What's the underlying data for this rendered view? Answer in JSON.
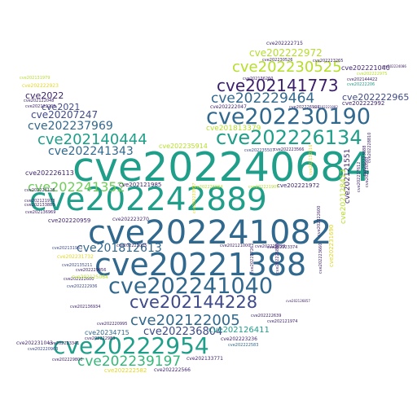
{
  "palette": {
    "purple": "#3b1f6b",
    "indigo": "#3e4a89",
    "blue": "#31688e",
    "teal": "#26828e",
    "green": "#1f9e89",
    "mint": "#35b779",
    "lime": "#6ece58",
    "yellow": "#b5de2b",
    "gold": "#e2d621"
  },
  "words": [
    {
      "text": "cve202240684",
      "color": "green"
    },
    {
      "text": "cve202242889",
      "color": "green"
    },
    {
      "text": "cve202241082",
      "color": "blue"
    },
    {
      "text": "cve20221388",
      "color": "blue"
    },
    {
      "text": "cve202241040",
      "color": "blue"
    },
    {
      "text": "cve20222954",
      "color": "green"
    },
    {
      "text": "cve202144228",
      "color": "indigo"
    },
    {
      "text": "cve202230190",
      "color": "blue"
    },
    {
      "text": "cve202226134",
      "color": "green"
    },
    {
      "text": "cve202141773",
      "color": "purple"
    },
    {
      "text": "cve202230525",
      "color": "yellow"
    },
    {
      "text": "cve202229464",
      "color": "blue"
    },
    {
      "text": "cve202140444",
      "color": "green"
    },
    {
      "text": "cve202241343",
      "color": "blue"
    },
    {
      "text": "cve202237969",
      "color": "blue"
    },
    {
      "text": "cve202241352",
      "color": "lime"
    },
    {
      "text": "cve202122005",
      "color": "blue"
    },
    {
      "text": "cve202239197",
      "color": "mint"
    },
    {
      "text": "cve201812613",
      "color": "blue"
    },
    {
      "text": "cve202236804",
      "color": "indigo"
    },
    {
      "text": "cve202222972",
      "color": "yellow"
    },
    {
      "text": "cve202222965",
      "color": "indigo"
    },
    {
      "text": "cve20207247",
      "color": "indigo"
    },
    {
      "text": "cve2021",
      "color": "indigo"
    },
    {
      "text": "cve2022",
      "color": "purple"
    },
    {
      "text": "cve202221040",
      "color": "purple"
    },
    {
      "text": "cve20234715",
      "color": "blue"
    },
    {
      "text": "cve202126411",
      "color": "green"
    },
    {
      "text": "cve202121551",
      "color": "purple"
    },
    {
      "text": "cve201813379",
      "color": "yellow"
    },
    {
      "text": "cve202235914",
      "color": "yellow"
    },
    {
      "text": "cve202226113",
      "color": "purple"
    },
    {
      "text": "cve202222992",
      "color": "purple"
    },
    {
      "text": "cve202221972",
      "color": "purple"
    },
    {
      "text": "cve202121985",
      "color": "purple"
    },
    {
      "text": "cve202223270",
      "color": "purple"
    },
    {
      "text": "cve202220959",
      "color": "purple"
    },
    {
      "text": "cve202222566",
      "color": "purple"
    },
    {
      "text": "cve202133771",
      "color": "purple"
    },
    {
      "text": "cve202222582",
      "color": "gold"
    },
    {
      "text": "cve202231732",
      "color": "gold"
    },
    {
      "text": "cve202231043",
      "color": "purple"
    },
    {
      "text": "cve202222715",
      "color": "purple"
    },
    {
      "text": "cve202222923",
      "color": "gold"
    },
    {
      "text": "cve202131979",
      "color": "yellow"
    },
    {
      "text": "cve202122048",
      "color": "purple"
    },
    {
      "text": "cve202222047",
      "color": "purple"
    },
    {
      "text": "cve202223236",
      "color": "purple"
    },
    {
      "text": "cve202222583",
      "color": "blue"
    },
    {
      "text": "cve202222639",
      "color": "purple"
    },
    {
      "text": "cve202220995",
      "color": "purple"
    },
    {
      "text": "cve202222936",
      "color": "indigo"
    },
    {
      "text": "cve202144422",
      "color": "purple"
    },
    {
      "text": "cve20222206",
      "color": "green"
    },
    {
      "text": "cve202222975",
      "color": "yellow"
    },
    {
      "text": "cve202136260",
      "color": "purple"
    },
    {
      "text": "cve202235507",
      "color": "indigo"
    },
    {
      "text": "cve202226084",
      "color": "yellow"
    },
    {
      "text": "cve202221907",
      "color": "yellow"
    },
    {
      "text": "cve202223566",
      "color": "purple"
    },
    {
      "text": "cve202222600",
      "color": "purple"
    },
    {
      "text": "cve202135211",
      "color": "indigo"
    },
    {
      "text": "cve202136934",
      "color": "purple"
    },
    {
      "text": "cve202229799",
      "color": "purple"
    },
    {
      "text": "cve202222005",
      "color": "purple"
    },
    {
      "text": "cve202125064",
      "color": "yellow"
    },
    {
      "text": "cve202223341",
      "color": "purple"
    },
    {
      "text": "cve202222983",
      "color": "purple"
    },
    {
      "text": "cve202131962",
      "color": "indigo"
    },
    {
      "text": "cve202229800",
      "color": "purple"
    },
    {
      "text": "cve202229456",
      "color": "purple"
    },
    {
      "text": "cve202220963",
      "color": "indigo"
    },
    {
      "text": "cve202121974",
      "color": "purple"
    },
    {
      "text": "cve202126857",
      "color": "purple"
    },
    {
      "text": "cve202223374",
      "color": "purple"
    },
    {
      "text": "cve202230526",
      "color": "purple"
    },
    {
      "text": "cve202223265",
      "color": "purple"
    },
    {
      "text": "cve202226923",
      "color": "purple"
    },
    {
      "text": "cve202221882",
      "color": "purple"
    },
    {
      "text": "cve202122205",
      "color": "purple"
    },
    {
      "text": "cve202226128",
      "color": "purple"
    },
    {
      "text": "cve202121973",
      "color": "purple"
    },
    {
      "text": "cve202133885",
      "color": "purple"
    },
    {
      "text": "cve202136969",
      "color": "purple"
    },
    {
      "text": "cve202121000",
      "color": "purple"
    },
    {
      "text": "cve202128413",
      "color": "yellow"
    },
    {
      "text": "cve202231690",
      "color": "gold"
    },
    {
      "text": "cve202217612",
      "color": "purple"
    },
    {
      "text": "cve202230560",
      "color": "purple"
    },
    {
      "text": "cve202223888",
      "color": "purple"
    },
    {
      "text": "cve202223660",
      "color": "purple"
    },
    {
      "text": "cve202222600",
      "color": "purple"
    },
    {
      "text": "cve202233977",
      "color": "gold"
    },
    {
      "text": "cve202130116",
      "color": "gold"
    },
    {
      "text": "cve202228810",
      "color": "purple"
    },
    {
      "text": "cve202225869",
      "color": "purple"
    },
    {
      "text": "cve202227262",
      "color": "purple"
    },
    {
      "text": "cve202224086",
      "color": "purple"
    }
  ]
}
